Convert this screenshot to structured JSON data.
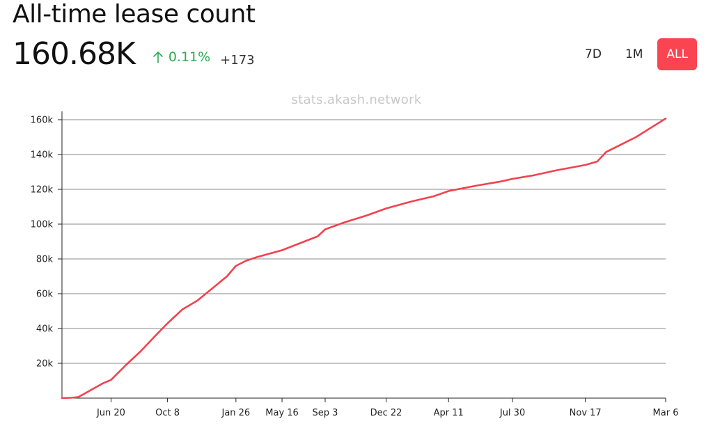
{
  "header": {
    "title": "All-time lease count",
    "value": "160.68K",
    "change_pct": "0.11%",
    "change_abs": "+173",
    "positive_color": "#2fa84f"
  },
  "range": {
    "options": [
      "7D",
      "1M",
      "ALL"
    ],
    "selected": "ALL",
    "accent": "#fa4452"
  },
  "watermark": "stats.akash.network",
  "chart_data": {
    "type": "line",
    "title": "",
    "xlabel": "",
    "ylabel": "",
    "ylim": [
      0,
      165000
    ],
    "y_ticks": [
      20000,
      40000,
      60000,
      80000,
      100000,
      120000,
      140000,
      160000
    ],
    "y_tick_labels": [
      "20k",
      "40k",
      "60k",
      "80k",
      "100k",
      "120k",
      "140k",
      "160k"
    ],
    "x_tick_labels": [
      "Jun 20",
      "Oct 8",
      "Jan 26",
      "May 16",
      "Sep 3",
      "Dec 22",
      "Apr 11",
      "Jul 30",
      "Nov 17",
      "Mar 6"
    ],
    "grid": true,
    "line_color": "#f2424e",
    "series": [
      {
        "x": [
          "",
          "",
          "",
          "",
          "Jun 20",
          "",
          "",
          "",
          "Oct 8",
          "",
          "",
          "",
          "",
          "Jan 26",
          "",
          "",
          "May 16",
          "",
          "",
          "Sep 3",
          "",
          "",
          "Dec 22",
          "",
          "",
          "Apr 11",
          "",
          "",
          "Jul 30",
          "",
          "",
          "Nov 17",
          "",
          "",
          "",
          "Mar 6"
        ],
        "values": [
          0,
          200,
          600,
          8500,
          10500,
          19000,
          27000,
          36000,
          43000,
          51000,
          56000,
          63000,
          70000,
          76000,
          79000,
          81000,
          85000,
          89000,
          93000,
          97000,
          101000,
          105000,
          109000,
          113000,
          116000,
          119000,
          122000,
          124500,
          126000,
          128000,
          131000,
          134000,
          136000,
          141500,
          150000,
          160680
        ]
      }
    ],
    "x_positions_days": [
      0,
      12,
      22,
      55,
      66,
      86,
      106,
      126,
      142,
      162,
      182,
      202,
      222,
      234,
      248,
      262,
      296,
      320,
      344,
      354,
      380,
      410,
      436,
      470,
      500,
      520,
      556,
      590,
      606,
      634,
      666,
      704,
      720,
      732,
      772,
      812
    ]
  }
}
